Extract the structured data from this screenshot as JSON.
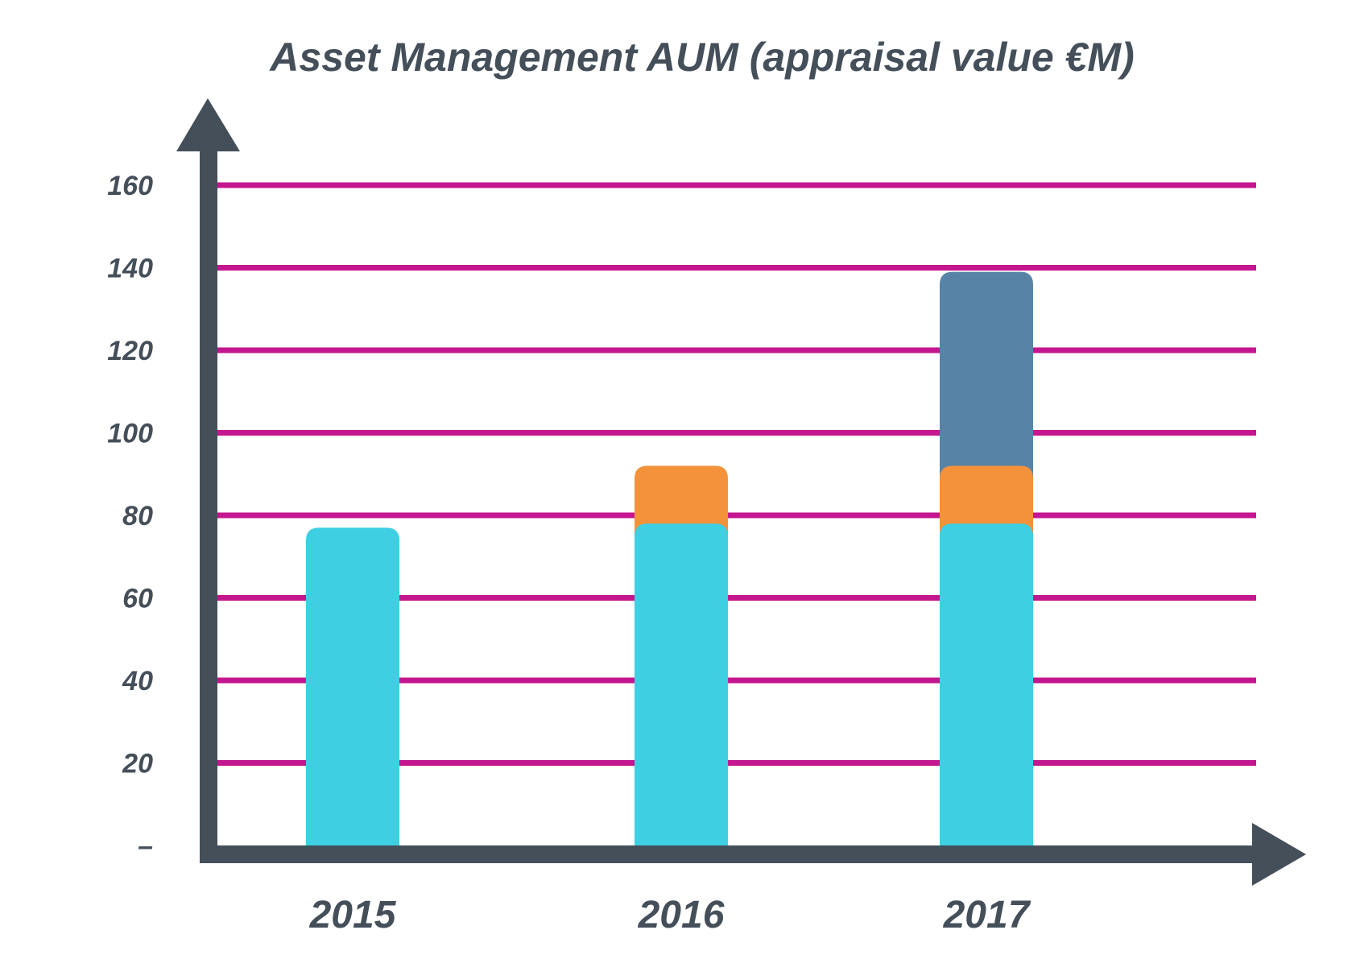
{
  "chart_data": {
    "type": "bar",
    "stacked": true,
    "title": "Asset Management AUM (appraisal value €M)",
    "xlabel": "",
    "ylabel": "",
    "categories": [
      "2015",
      "2016",
      "2017"
    ],
    "series": [
      {
        "values": [
          77,
          78,
          78
        ]
      },
      {
        "values": [
          0,
          14,
          14
        ]
      },
      {
        "values": [
          0,
          0,
          47
        ]
      }
    ],
    "ylim": [
      0,
      160
    ],
    "yticks": [
      0,
      20,
      40,
      60,
      80,
      100,
      120,
      140,
      160
    ],
    "ytick_labels": [
      "–",
      "20",
      "40",
      "60",
      "80",
      "100",
      "120",
      "140",
      "160"
    ],
    "grid": true,
    "legend": "none",
    "colors": {
      "series": [
        "#3ecfe3",
        "#f3923a",
        "#5783a6"
      ],
      "grid": "#c4168e",
      "axis": "#444f5a",
      "text": "#444f5a"
    }
  }
}
